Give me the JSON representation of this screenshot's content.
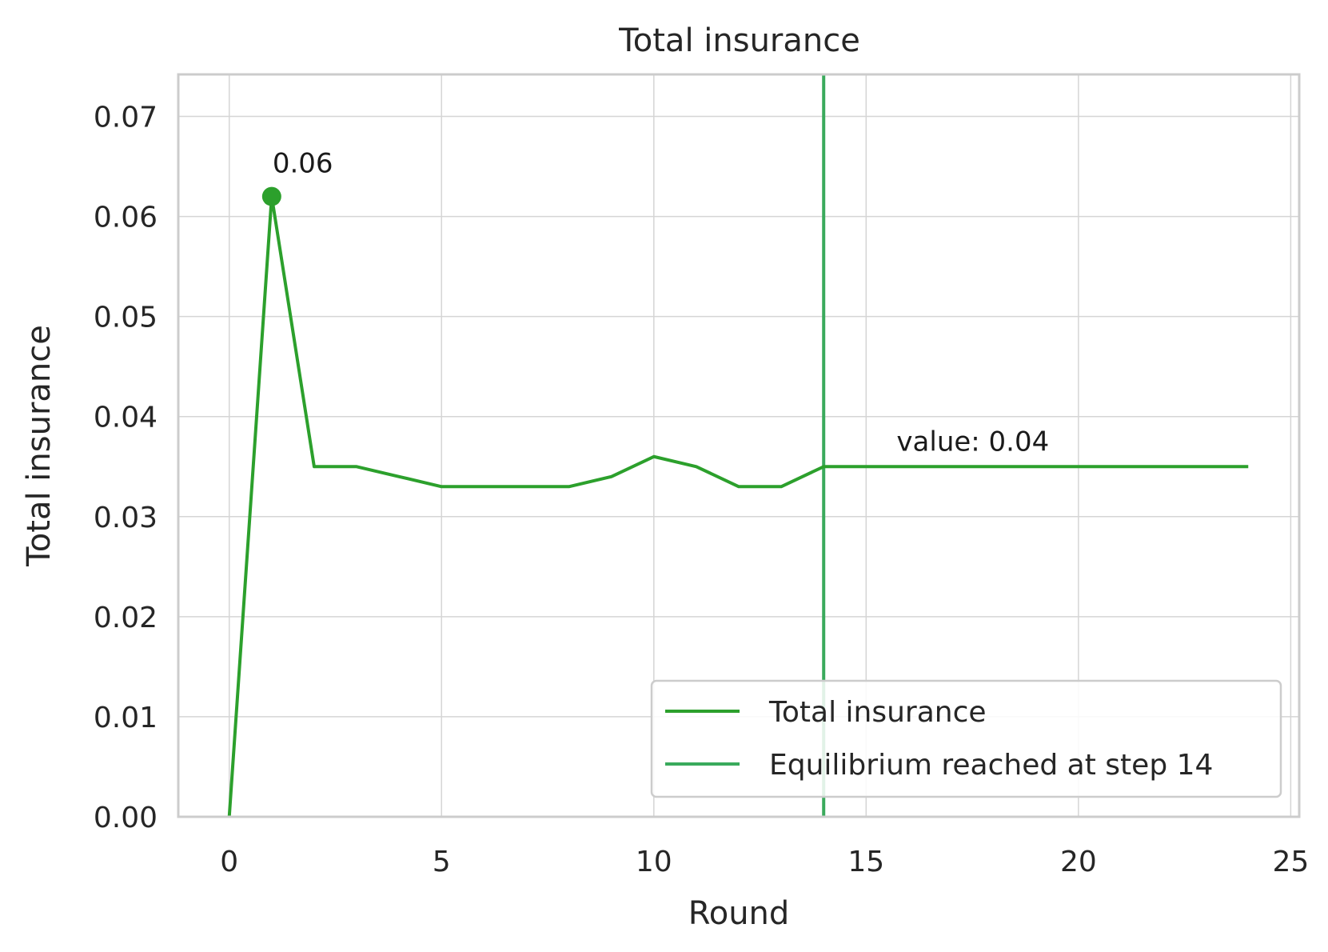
{
  "chart_data": {
    "type": "line",
    "title": "Total insurance",
    "xlabel": "Round",
    "ylabel": "Total insurance",
    "xlim": [
      -1.2,
      25.2
    ],
    "ylim": [
      0,
      0.0742
    ],
    "xticks": [
      0,
      5,
      10,
      15,
      20,
      25
    ],
    "xtick_labels": [
      "0",
      "5",
      "10",
      "15",
      "20",
      "25"
    ],
    "yticks": [
      0,
      0.01,
      0.02,
      0.03,
      0.04,
      0.05,
      0.06,
      0.07
    ],
    "ytick_labels": [
      "0.00",
      "0.01",
      "0.02",
      "0.03",
      "0.04",
      "0.05",
      "0.06",
      "0.07"
    ],
    "grid": true,
    "legend_position": "lower-right",
    "series": [
      {
        "name": "Total insurance",
        "color": "#2ca02c",
        "x": [
          0,
          1,
          2,
          3,
          4,
          5,
          6,
          7,
          8,
          9,
          10,
          11,
          12,
          13,
          14,
          15,
          16,
          17,
          18,
          19,
          20,
          21,
          22,
          23,
          24
        ],
        "values": [
          0.0,
          0.062,
          0.035,
          0.035,
          0.034,
          0.033,
          0.033,
          0.033,
          0.033,
          0.034,
          0.036,
          0.035,
          0.033,
          0.033,
          0.035,
          0.035,
          0.035,
          0.035,
          0.035,
          0.035,
          0.035,
          0.035,
          0.035,
          0.035,
          0.035
        ]
      }
    ],
    "equilibrium": {
      "name": "Equilibrium reached at step 14",
      "x": 14,
      "color": "#3aaa5c"
    },
    "annotations": [
      {
        "text": "0.06",
        "x": 1,
        "y": 0.062,
        "marker": true
      },
      {
        "text": "value: 0.04",
        "x": 16,
        "y": 0.035,
        "marker": false
      }
    ]
  }
}
